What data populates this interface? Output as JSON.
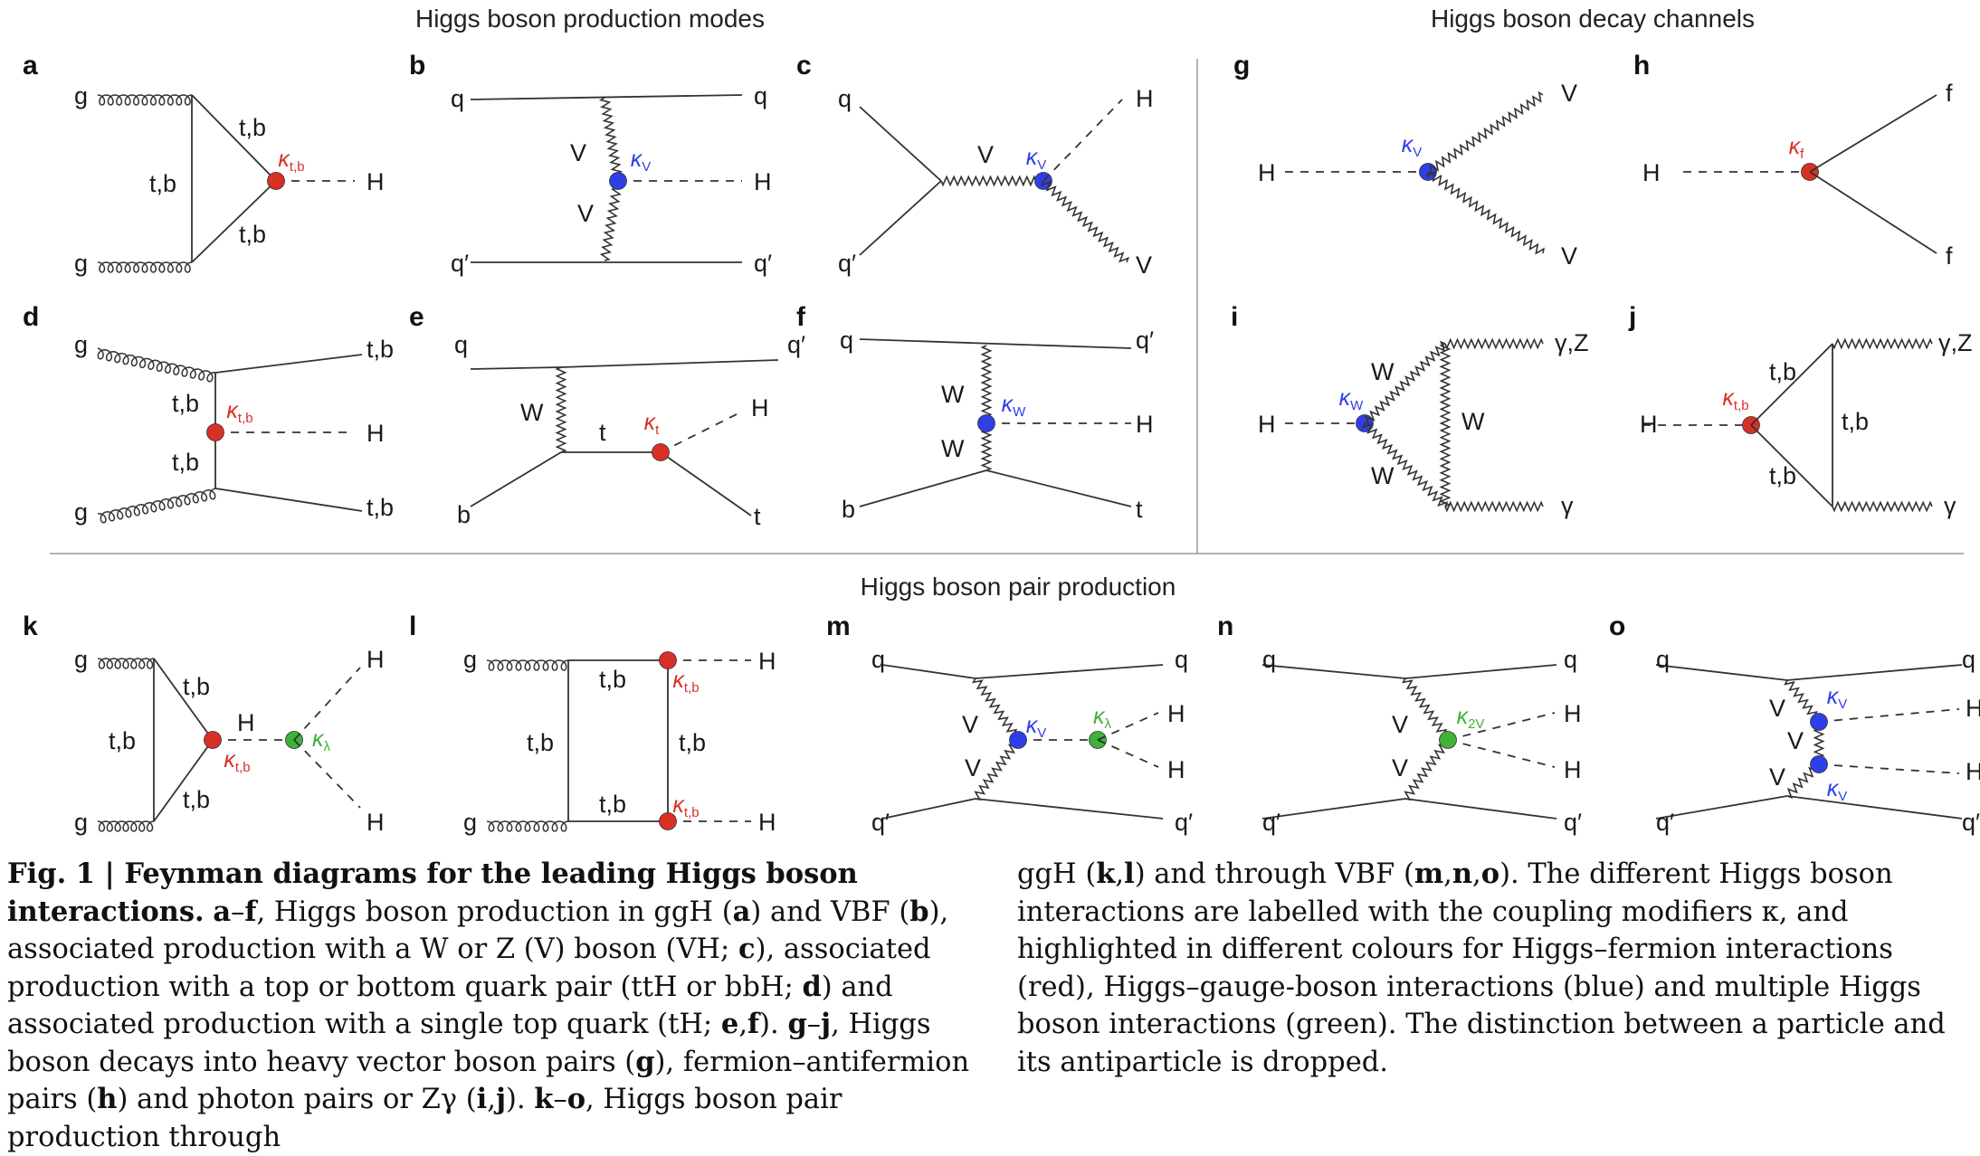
{
  "headers": {
    "production": "Higgs boson production modes",
    "decay": "Higgs boson decay channels",
    "pair": "Higgs boson pair production"
  },
  "colors": {
    "red": "#d93025",
    "blue": "#2f3fe8",
    "green": "#3fb23a",
    "line": "#333333"
  },
  "labels": {
    "g": "g",
    "q": "q",
    "qp": "q′",
    "b": "b",
    "t": "t",
    "H": "H",
    "V": "V",
    "W": "W",
    "f": "f",
    "tb": "t,b",
    "gamma": "γ",
    "gammaZ": "γ,Z",
    "k_tb": "κt,b",
    "k_V": "κV",
    "k_t": "κt",
    "k_W": "κW",
    "k_f": "κf",
    "k_lambda": "κλ",
    "k_2V": "κ2V"
  },
  "panels": [
    "a",
    "b",
    "c",
    "d",
    "e",
    "f",
    "g",
    "h",
    "i",
    "j",
    "k",
    "l",
    "m",
    "n",
    "o"
  ],
  "caption": {
    "title": "Fig. 1 | Feynman diagrams for the leading Higgs boson interactions.",
    "left_segments": [
      {
        "t": " ",
        "b": false
      },
      {
        "t": "a",
        "b": true
      },
      {
        "t": "–",
        "b": false
      },
      {
        "t": "f",
        "b": true
      },
      {
        "t": ", Higgs boson production in ggH (",
        "b": false
      },
      {
        "t": "a",
        "b": true
      },
      {
        "t": ") and VBF (",
        "b": false
      },
      {
        "t": "b",
        "b": true
      },
      {
        "t": "), associated production with a W or Z (V) boson (VH; ",
        "b": false
      },
      {
        "t": "c",
        "b": true
      },
      {
        "t": "), associated production with a top or bottom quark pair (ttH or bbH; ",
        "b": false
      },
      {
        "t": "d",
        "b": true
      },
      {
        "t": ") and associated production with a single top quark (tH; ",
        "b": false
      },
      {
        "t": "e",
        "b": true
      },
      {
        "t": ",",
        "b": false
      },
      {
        "t": "f",
        "b": true
      },
      {
        "t": "). ",
        "b": false
      },
      {
        "t": "g",
        "b": true
      },
      {
        "t": "–",
        "b": false
      },
      {
        "t": "j",
        "b": true
      },
      {
        "t": ", Higgs boson decays into heavy vector boson pairs (",
        "b": false
      },
      {
        "t": "g",
        "b": true
      },
      {
        "t": "), fermion–antifermion pairs (",
        "b": false
      },
      {
        "t": "h",
        "b": true
      },
      {
        "t": ") and photon pairs or Zγ (",
        "b": false
      },
      {
        "t": "i",
        "b": true
      },
      {
        "t": ",",
        "b": false
      },
      {
        "t": "j",
        "b": true
      },
      {
        "t": "). ",
        "b": false
      },
      {
        "t": "k",
        "b": true
      },
      {
        "t": "–",
        "b": false
      },
      {
        "t": "o",
        "b": true
      },
      {
        "t": ", Higgs boson pair production through",
        "b": false
      }
    ],
    "right_segments": [
      {
        "t": "ggH (",
        "b": false
      },
      {
        "t": "k",
        "b": true
      },
      {
        "t": ",",
        "b": false
      },
      {
        "t": "l",
        "b": true
      },
      {
        "t": ") and through VBF (",
        "b": false
      },
      {
        "t": "m",
        "b": true
      },
      {
        "t": ",",
        "b": false
      },
      {
        "t": "n",
        "b": true
      },
      {
        "t": ",",
        "b": false
      },
      {
        "t": "o",
        "b": true
      },
      {
        "t": "). The different Higgs boson interactions are labelled with the coupling modifiers κ, and highlighted in different colours for Higgs–fermion interactions (red), Higgs–gauge-boson interactions (blue) and multiple Higgs boson interactions (green). The distinction between a particle and its antiparticle is dropped.",
        "b": false
      }
    ]
  }
}
